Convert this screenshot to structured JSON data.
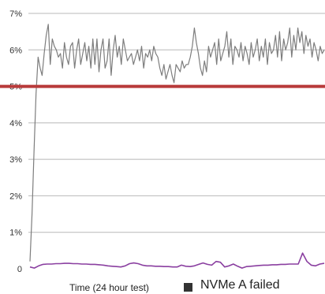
{
  "chart_data": {
    "type": "line",
    "xlabel": "Time (24 hour test)",
    "ylim": [
      0,
      7
    ],
    "y_ticks": [
      {
        "value": 0,
        "label": "0"
      },
      {
        "value": 1,
        "label": "1%"
      },
      {
        "value": 2,
        "label": "2%"
      },
      {
        "value": 3,
        "label": "3%"
      },
      {
        "value": 4,
        "label": "4%"
      },
      {
        "value": 5,
        "label": "5%"
      },
      {
        "value": 6,
        "label": "6%"
      },
      {
        "value": 7,
        "label": "7%"
      }
    ],
    "grid": true,
    "threshold": {
      "value": 5,
      "color": "#b83a3a"
    },
    "legend": {
      "label": "NVMe A failed",
      "color": "#333333",
      "placement": "bottom"
    },
    "series": [
      {
        "color": "#7d7d7d",
        "values": [
          0.2,
          1.5,
          3.2,
          4.8,
          5.8,
          5.5,
          5.3,
          5.9,
          6.4,
          6.7,
          5.6,
          6.3,
          6.1,
          6.0,
          5.8,
          5.9,
          5.5,
          6.2,
          5.8,
          5.6,
          6.1,
          6.2,
          5.5,
          6.0,
          6.3,
          5.6,
          5.9,
          6.2,
          5.7,
          6.1,
          5.5,
          6.3,
          5.6,
          6.3,
          5.4,
          6.0,
          6.3,
          5.5,
          5.7,
          6.3,
          5.3,
          6.0,
          6.4,
          5.8,
          6.1,
          5.6,
          6.3,
          6.0,
          5.7,
          5.8,
          5.9,
          5.6,
          5.8,
          6.0,
          5.7,
          6.1,
          5.5,
          5.9,
          5.8,
          6.0,
          5.7,
          6.1,
          5.9,
          5.8,
          5.5,
          5.3,
          5.6,
          5.2,
          5.4,
          5.6,
          5.3,
          5.1,
          5.6,
          5.5,
          5.4,
          5.7,
          5.5,
          5.6,
          5.6,
          5.8,
          6.1,
          6.6,
          6.2,
          5.9,
          5.5,
          5.3,
          5.7,
          5.4,
          6.1,
          5.8,
          6.0,
          6.2,
          5.6,
          6.3,
          5.7,
          5.9,
          6.1,
          6.5,
          5.8,
          6.3,
          5.6,
          6.1,
          6.0,
          5.8,
          6.2,
          5.7,
          6.1,
          5.9,
          5.6,
          6.2,
          5.8,
          6.0,
          6.3,
          5.7,
          6.1,
          5.8,
          6.3,
          5.6,
          6.2,
          5.9,
          6.0,
          6.4,
          5.8,
          6.5,
          5.7,
          6.3,
          6.0,
          6.2,
          6.6,
          5.8,
          6.4,
          6.0,
          6.6,
          6.2,
          6.5,
          5.9,
          6.4,
          6.1,
          6.3,
          5.8,
          6.2,
          6.0,
          5.7,
          6.1,
          5.9,
          6.0
        ]
      },
      {
        "color": "#8a3fa0",
        "values": [
          0.05,
          0.02,
          0.08,
          0.12,
          0.13,
          0.13,
          0.14,
          0.14,
          0.15,
          0.15,
          0.14,
          0.14,
          0.13,
          0.13,
          0.12,
          0.12,
          0.11,
          0.1,
          0.08,
          0.07,
          0.06,
          0.05,
          0.08,
          0.14,
          0.16,
          0.14,
          0.1,
          0.08,
          0.08,
          0.07,
          0.07,
          0.06,
          0.06,
          0.05,
          0.05,
          0.1,
          0.07,
          0.06,
          0.08,
          0.12,
          0.16,
          0.12,
          0.1,
          0.2,
          0.18,
          0.05,
          0.08,
          0.13,
          0.07,
          0.02,
          0.06,
          0.07,
          0.08,
          0.09,
          0.1,
          0.1,
          0.11,
          0.11,
          0.12,
          0.12,
          0.13,
          0.13,
          0.13,
          0.43,
          0.2,
          0.1,
          0.08,
          0.13,
          0.15
        ]
      }
    ]
  }
}
